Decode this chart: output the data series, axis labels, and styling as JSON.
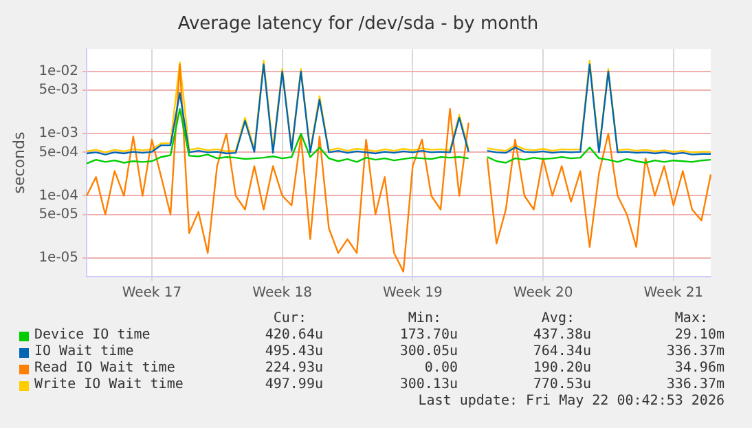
{
  "chart_data": {
    "type": "line",
    "title": "Average latency for /dev/sda - by month",
    "ylabel": "seconds",
    "log": "y",
    "grid": true,
    "legend": "bottom",
    "marker": "none",
    "line_style": "solid",
    "categories": [
      null,
      null,
      null,
      null,
      null,
      null,
      null,
      "Week 17",
      null,
      null,
      null,
      null,
      null,
      null,
      null,
      null,
      null,
      null,
      null,
      null,
      null,
      "Week 18",
      null,
      null,
      null,
      null,
      null,
      null,
      null,
      null,
      null,
      null,
      null,
      null,
      null,
      "Week 19",
      null,
      null,
      null,
      null,
      null,
      null,
      null,
      null,
      null,
      null,
      null,
      null,
      null,
      "Week 20",
      null,
      null,
      null,
      null,
      null,
      null,
      null,
      null,
      null,
      null,
      null,
      null,
      null,
      "Week 21",
      null,
      null,
      null,
      null
    ],
    "ylim": [
      5e-06,
      0.023
    ],
    "yticks": [
      {
        "value": 0.01,
        "label": "1e-02"
      },
      {
        "value": 0.005,
        "label": "5e-03"
      },
      {
        "value": 0.001,
        "label": "1e-03"
      },
      {
        "value": 0.0005,
        "label": "5e-04"
      },
      {
        "value": 0.0001,
        "label": "1e-04"
      },
      {
        "value": 5e-05,
        "label": "5e-05"
      },
      {
        "value": 1e-05,
        "label": "1e-05"
      }
    ],
    "series": [
      {
        "name": "Device IO time",
        "color": "#00cc00",
        "values": [
          0.00033,
          0.00038,
          0.00035,
          0.00037,
          0.00034,
          0.00036,
          0.00035,
          0.00036,
          0.00042,
          0.00045,
          0.0025,
          0.00044,
          0.00043,
          0.00046,
          0.0004,
          0.00042,
          0.00041,
          0.00039,
          0.0004,
          0.00041,
          0.00043,
          0.0004,
          0.00042,
          0.001,
          0.00042,
          0.0006,
          0.0004,
          0.00036,
          0.00039,
          0.00035,
          0.00041,
          0.00038,
          0.0004,
          0.00037,
          0.00039,
          0.00041,
          0.0004,
          0.00039,
          0.00042,
          0.00041,
          0.00042,
          0.0004,
          null,
          0.00042,
          0.00036,
          0.00034,
          0.0004,
          0.00038,
          0.00041,
          0.00039,
          0.0004,
          0.00042,
          0.0004,
          0.00041,
          0.0006,
          0.0004,
          0.00038,
          0.00035,
          0.00039,
          0.00036,
          0.00034,
          0.00037,
          0.00035,
          0.00037,
          0.00036,
          0.00035,
          0.00037,
          0.00038
        ]
      },
      {
        "name": "IO Wait time",
        "color": "#0066b3",
        "values": [
          0.00048,
          0.0005,
          0.00046,
          0.0005,
          0.00048,
          0.00051,
          0.00049,
          0.00051,
          0.00065,
          0.00065,
          0.0045,
          0.0005,
          0.00053,
          0.0005,
          0.00051,
          0.00048,
          0.00049,
          0.0016,
          0.00051,
          0.013,
          0.00049,
          0.01,
          0.00053,
          0.01,
          0.0005,
          0.0035,
          0.0005,
          0.00053,
          0.00049,
          0.00052,
          0.0005,
          0.00048,
          0.00051,
          0.00049,
          0.00052,
          0.0005,
          0.00053,
          0.0005,
          0.00051,
          0.0005,
          0.0018,
          0.00051,
          null,
          0.00053,
          0.0005,
          0.00049,
          0.0006,
          0.00051,
          0.0005,
          0.00052,
          0.00049,
          0.00051,
          0.0005,
          0.00051,
          0.013,
          0.0005,
          0.01,
          0.0005,
          0.00051,
          0.00049,
          0.0005,
          0.00048,
          0.0005,
          0.00047,
          0.00049,
          0.00046,
          0.00047,
          0.00047
        ]
      },
      {
        "name": "Read IO Wait time",
        "color": "#ff8000",
        "values": [
          0.0001,
          0.0002,
          5e-05,
          0.00025,
          0.0001,
          0.0009,
          0.0001,
          0.0008,
          0.0002,
          5e-05,
          0.013,
          2.5e-05,
          5.5e-05,
          1.2e-05,
          0.0003,
          0.001,
          0.0001,
          6e-05,
          0.0003,
          6e-05,
          0.0003,
          0.0001,
          7e-05,
          0.0009,
          2e-05,
          0.0009,
          3e-05,
          1.2e-05,
          2e-05,
          1.2e-05,
          0.0008,
          5e-05,
          0.0002,
          1.2e-05,
          6e-06,
          0.0003,
          0.0008,
          0.0001,
          6e-05,
          0.0025,
          0.0001,
          0.0015,
          null,
          0.0004,
          1.7e-05,
          6e-05,
          0.0008,
          0.0001,
          6e-05,
          0.0004,
          0.0001,
          0.0003,
          8e-05,
          0.00025,
          1.5e-05,
          0.00023,
          0.001,
          0.0001,
          5e-05,
          1.5e-05,
          0.0004,
          0.0001,
          0.0003,
          7e-05,
          0.00025,
          6e-05,
          4e-05,
          0.00022
        ]
      },
      {
        "name": "Write IO Wait time",
        "color": "#ffcc00",
        "values": [
          0.00052,
          0.00055,
          0.0005,
          0.00055,
          0.00052,
          0.00056,
          0.00054,
          0.00056,
          0.0007,
          0.0007,
          0.014,
          0.00055,
          0.00058,
          0.00054,
          0.00056,
          0.00052,
          0.00053,
          0.0018,
          0.00056,
          0.015,
          0.00057,
          0.011,
          0.00058,
          0.011,
          0.00055,
          0.004,
          0.00054,
          0.00058,
          0.00053,
          0.00057,
          0.00055,
          0.00052,
          0.00056,
          0.00053,
          0.00057,
          0.00054,
          0.00058,
          0.00055,
          0.00056,
          0.00054,
          0.002,
          0.00056,
          null,
          0.00058,
          0.00055,
          0.00053,
          0.00065,
          0.00056,
          0.00054,
          0.00057,
          0.00053,
          0.00056,
          0.00055,
          0.00056,
          0.015,
          0.00055,
          0.011,
          0.00054,
          0.00056,
          0.00053,
          0.00055,
          0.00052,
          0.00054,
          0.00051,
          0.00053,
          0.0005,
          0.00051,
          0.00051
        ]
      }
    ],
    "annotations": [
      "Cur:",
      "Min:",
      "Avg:",
      "Max:",
      "420.64u",
      "173.70u",
      "437.38u",
      "29.10m",
      "495.43u",
      "300.05u",
      "764.34u",
      "336.37m",
      "224.93u",
      "0.00",
      "190.20u",
      "34.96m",
      "497.99u",
      "300.13u",
      "770.53u",
      "336.37m",
      "Last update: Fri May 22 00:42:53 2026"
    ]
  }
}
